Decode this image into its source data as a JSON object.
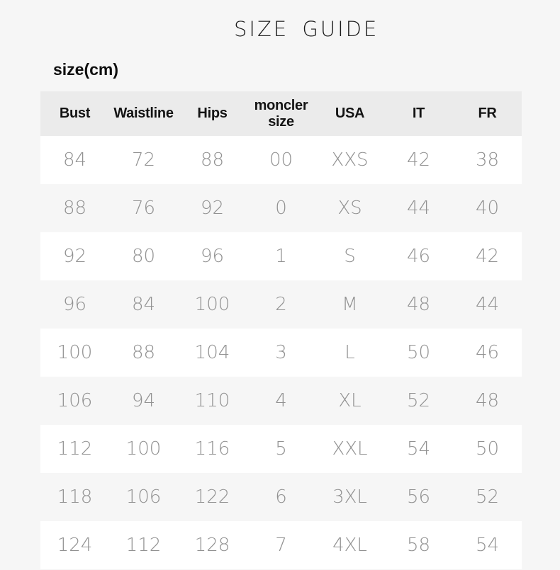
{
  "page": {
    "title": "SIZE GUIDE",
    "unit_label": "size(cm)"
  },
  "table": {
    "columns": [
      "Bust",
      "Waistline",
      "Hips",
      "moncler size",
      "USA",
      "IT",
      "FR"
    ],
    "rows": [
      [
        "84",
        "72",
        "88",
        "00",
        "XXS",
        "42",
        "38"
      ],
      [
        "88",
        "76",
        "92",
        "0",
        "XS",
        "44",
        "40"
      ],
      [
        "92",
        "80",
        "96",
        "1",
        "S",
        "46",
        "42"
      ],
      [
        "96",
        "84",
        "100",
        "2",
        "M",
        "48",
        "44"
      ],
      [
        "100",
        "88",
        "104",
        "3",
        "L",
        "50",
        "46"
      ],
      [
        "106",
        "94",
        "110",
        "4",
        "XL",
        "52",
        "48"
      ],
      [
        "112",
        "100",
        "116",
        "5",
        "XXL",
        "54",
        "50"
      ],
      [
        "118",
        "106",
        "122",
        "6",
        "3XL",
        "56",
        "52"
      ],
      [
        "124",
        "112",
        "128",
        "7",
        "4XL",
        "58",
        "54"
      ]
    ]
  },
  "colors": {
    "page_bg": "#f6f6f6",
    "header_bg": "#ebebeb",
    "row_alt_bg": "#ffffff",
    "title_text": "#1a1a1a",
    "label_text": "#0f0f0f",
    "header_text": "#141414",
    "cell_text": "#929292"
  }
}
